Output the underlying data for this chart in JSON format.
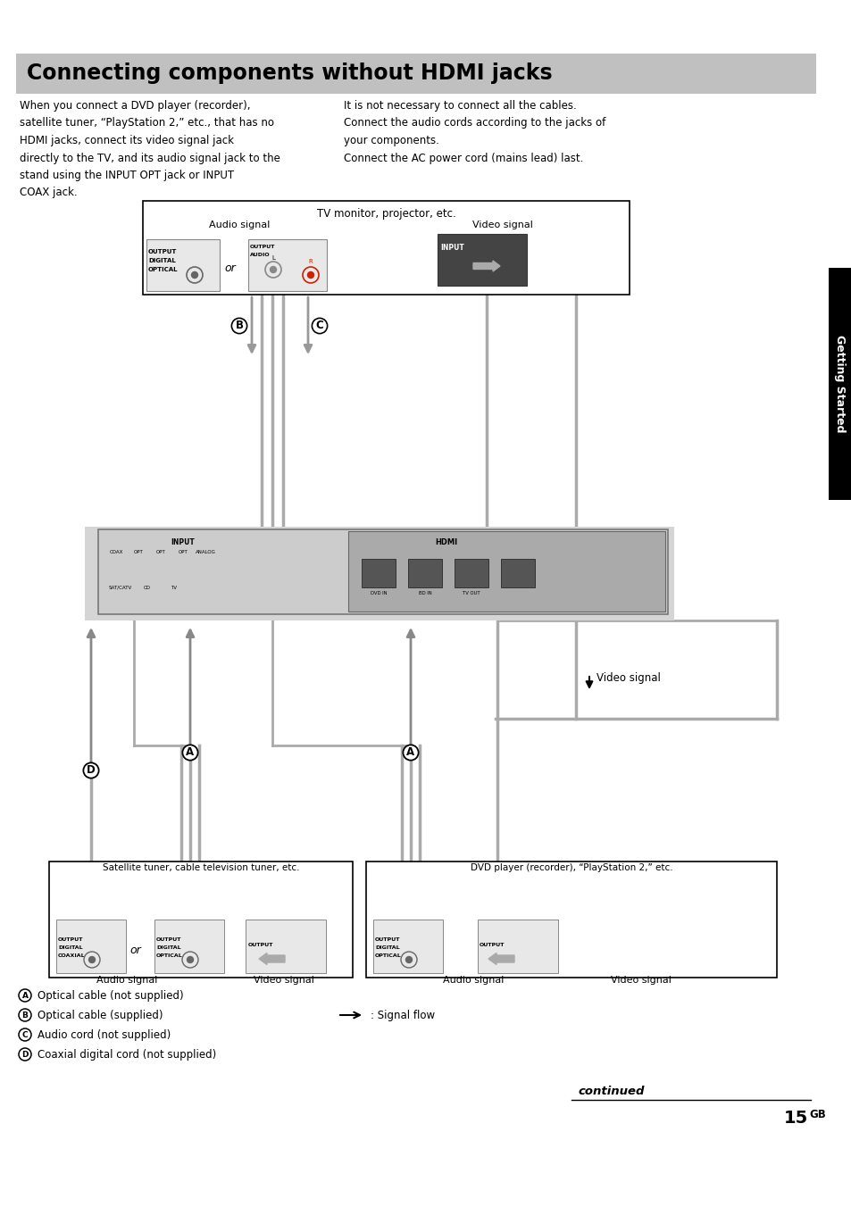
{
  "title": "Connecting components without HDMI jacks",
  "title_bg": "#c0c0c0",
  "title_color": "#000000",
  "page_bg": "#ffffff",
  "body_text_left": "When you connect a DVD player (recorder),\nsatellite tuner, “PlayStation 2,” etc., that has no\nHDMI jacks, connect its video signal jack\ndirectly to the TV, and its audio signal jack to the\nstand using the INPUT OPT jack or INPUT\nCOAX jack.",
  "body_text_right": "It is not necessary to connect all the cables.\nConnect the audio cords according to the jacks of\nyour components.\nConnect the AC power cord (mains lead) last.",
  "legend_items": [
    {
      "marker": "A",
      "text": "Optical cable (not supplied)"
    },
    {
      "marker": "B",
      "text": "Optical cable (supplied)"
    },
    {
      "marker": "C",
      "text": "Audio cord (not supplied)"
    },
    {
      "marker": "D",
      "text": "Coaxial digital cord (not supplied)"
    }
  ],
  "signal_flow_text": ": Signal flow",
  "continued_text": "continued",
  "page_number": "15",
  "page_suffix": "GB",
  "side_tab_text": "Getting Started",
  "side_tab_bg": "#000000",
  "side_tab_color": "#ffffff"
}
